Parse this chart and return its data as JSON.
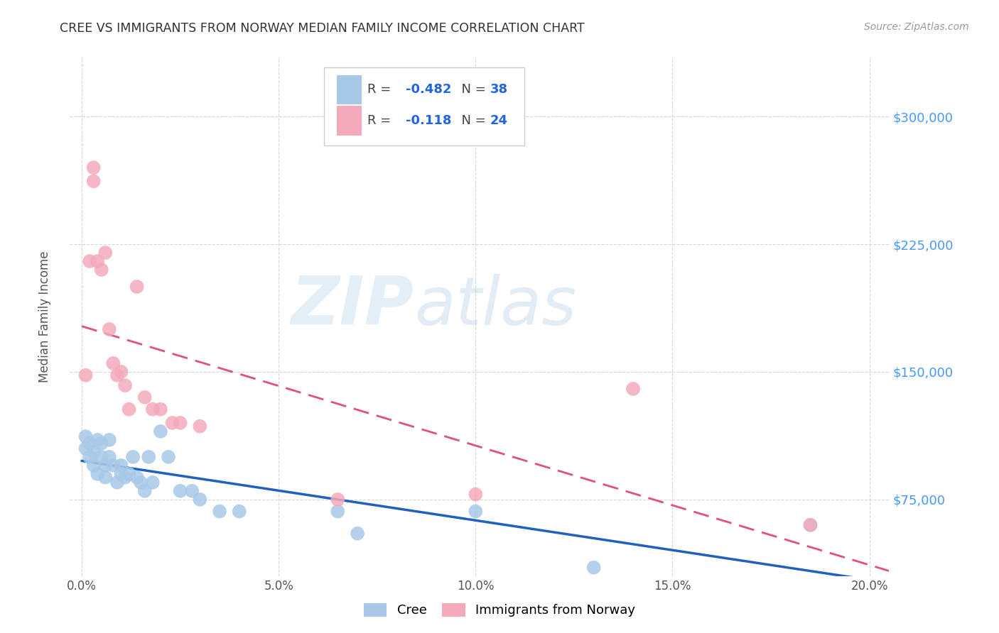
{
  "title": "CREE VS IMMIGRANTS FROM NORWAY MEDIAN FAMILY INCOME CORRELATION CHART",
  "source": "Source: ZipAtlas.com",
  "xlabel_ticks": [
    "0.0%",
    "5.0%",
    "10.0%",
    "15.0%",
    "20.0%"
  ],
  "xlabel_vals": [
    0.0,
    0.05,
    0.1,
    0.15,
    0.2
  ],
  "ylabel_ticks": [
    "$75,000",
    "$150,000",
    "$225,000",
    "$300,000"
  ],
  "ylabel_vals": [
    75000,
    150000,
    225000,
    300000
  ],
  "ylim": [
    30000,
    335000
  ],
  "xlim": [
    -0.003,
    0.205
  ],
  "cree_R": -0.482,
  "cree_N": 38,
  "norway_R": -0.118,
  "norway_N": 24,
  "cree_color": "#a8c8e8",
  "norway_color": "#f4aabb",
  "cree_line_color": "#2060c0",
  "norway_line_color": "#e05080",
  "cree_scatter_x": [
    0.001,
    0.001,
    0.002,
    0.002,
    0.003,
    0.003,
    0.004,
    0.004,
    0.005,
    0.005,
    0.006,
    0.006,
    0.007,
    0.007,
    0.008,
    0.009,
    0.01,
    0.01,
    0.011,
    0.012,
    0.013,
    0.014,
    0.015,
    0.016,
    0.017,
    0.018,
    0.02,
    0.022,
    0.025,
    0.028,
    0.03,
    0.035,
    0.04,
    0.065,
    0.07,
    0.1,
    0.13,
    0.185
  ],
  "cree_scatter_y": [
    105000,
    112000,
    100000,
    108000,
    95000,
    103000,
    110000,
    90000,
    100000,
    108000,
    95000,
    88000,
    100000,
    110000,
    95000,
    85000,
    90000,
    95000,
    88000,
    90000,
    100000,
    88000,
    85000,
    80000,
    100000,
    85000,
    115000,
    100000,
    80000,
    80000,
    75000,
    68000,
    68000,
    68000,
    55000,
    68000,
    35000,
    60000
  ],
  "norway_scatter_x": [
    0.001,
    0.002,
    0.003,
    0.003,
    0.004,
    0.005,
    0.006,
    0.007,
    0.008,
    0.009,
    0.01,
    0.011,
    0.012,
    0.014,
    0.016,
    0.018,
    0.02,
    0.023,
    0.025,
    0.03,
    0.065,
    0.1,
    0.14,
    0.185
  ],
  "norway_scatter_y": [
    148000,
    215000,
    270000,
    262000,
    215000,
    210000,
    220000,
    175000,
    155000,
    148000,
    150000,
    142000,
    128000,
    200000,
    135000,
    128000,
    128000,
    120000,
    120000,
    118000,
    75000,
    78000,
    140000,
    60000
  ],
  "watermark_zip": "ZIP",
  "watermark_atlas": "atlas",
  "grid_color": "#cccccc",
  "background_color": "#ffffff"
}
